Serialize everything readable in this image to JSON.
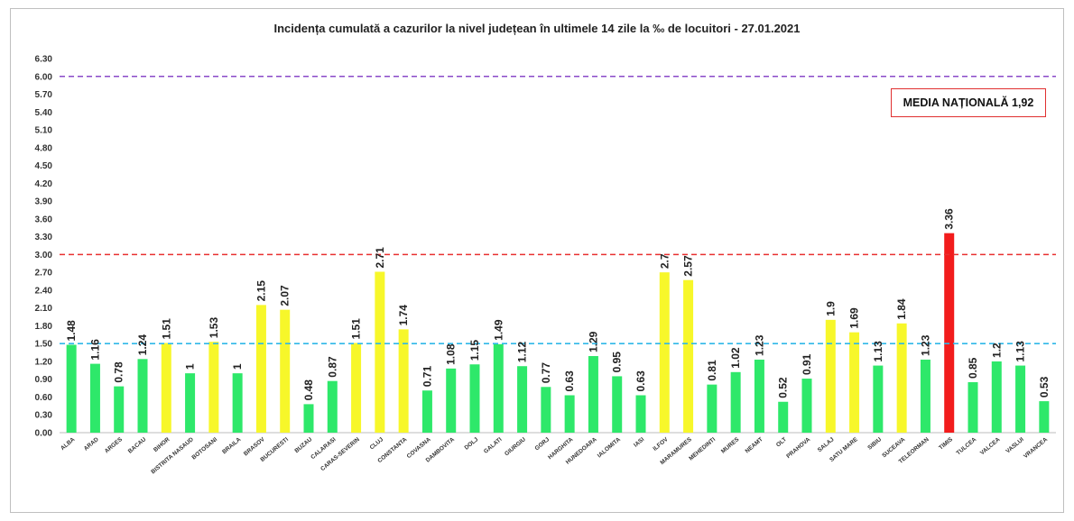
{
  "chart_data": {
    "type": "bar",
    "title": "Incidența cumulată a cazurilor la nivel județean în ultimele 14 zile la ‰ de locuitori - 27.01.2021",
    "xlabel": "",
    "ylabel": "",
    "ylim": [
      0,
      6.3
    ],
    "yticks": [
      "0.00",
      "0.30",
      "0.60",
      "0.90",
      "1.20",
      "1.50",
      "1.80",
      "2.10",
      "2.40",
      "2.70",
      "3.00",
      "3.30",
      "3.60",
      "3.90",
      "4.20",
      "4.50",
      "4.80",
      "5.10",
      "5.40",
      "5.70",
      "6.00",
      "6.30"
    ],
    "categories": [
      "ALBA",
      "ARAD",
      "ARGES",
      "BACAU",
      "BIHOR",
      "BISTRITA NASAUD",
      "BOTOSANI",
      "BRAILA",
      "BRASOV",
      "BUCURESTI",
      "BUZAU",
      "CALARASI",
      "CARAS-SEVERIN",
      "CLUJ",
      "CONSTANTA",
      "COVASNA",
      "DAMBOVITA",
      "DOLJ",
      "GALATI",
      "GIURGIU",
      "GORJ",
      "HARGHITA",
      "HUNEDOARA",
      "IALOMITA",
      "IASI",
      "ILFOV",
      "MARAMURES",
      "MEHEDINTI",
      "MURES",
      "NEAMT",
      "OLT",
      "PRAHOVA",
      "SALAJ",
      "SATU MARE",
      "SIBIU",
      "SUCEAVA",
      "TELEORMAN",
      "TIMIS",
      "TULCEA",
      "VALCEA",
      "VASLUI",
      "VRANCEA"
    ],
    "values": [
      1.48,
      1.16,
      0.78,
      1.24,
      1.51,
      1,
      1.53,
      1,
      2.15,
      2.07,
      0.48,
      0.87,
      1.51,
      2.71,
      1.74,
      0.71,
      1.08,
      1.15,
      1.49,
      1.12,
      0.77,
      0.63,
      1.29,
      0.95,
      0.63,
      2.7,
      2.57,
      0.81,
      1.02,
      1.23,
      0.52,
      0.91,
      1.9,
      1.69,
      1.13,
      1.84,
      1.23,
      3.36,
      0.85,
      1.2,
      1.13,
      0.53
    ],
    "data_labels": [
      "1.48",
      "1.16",
      "0.78",
      "1.24",
      "1.51",
      "1",
      "1.53",
      "1",
      "2.15",
      "2.07",
      "0.48",
      "0.87",
      "1.51",
      "2.71",
      "1.74",
      "0.71",
      "1.08",
      "1.15",
      "1.49",
      "1.12",
      "0.77",
      "0.63",
      "1.29",
      "0.95",
      "0.63",
      "2.7",
      "2.57",
      "0.81",
      "1.02",
      "1.23",
      "0.52",
      "0.91",
      "1.9",
      "1.69",
      "1.13",
      "1.84",
      "1.23",
      "3.36",
      "0.85",
      "1.2",
      "1.13",
      "0.53"
    ],
    "thresholds": [
      {
        "name": "1.5 threshold",
        "value": 1.5,
        "color": "#2fb8e8"
      },
      {
        "name": "3 threshold",
        "value": 3.0,
        "color": "#e83030"
      },
      {
        "name": "6 threshold",
        "value": 6.0,
        "color": "#8a48c8"
      }
    ],
    "colors": {
      "low": "#2ee86a",
      "mid": "#f7f72a",
      "high": "#f21c1c"
    },
    "annotation": "MEDIA NAȚIONALĂ  1,92"
  }
}
